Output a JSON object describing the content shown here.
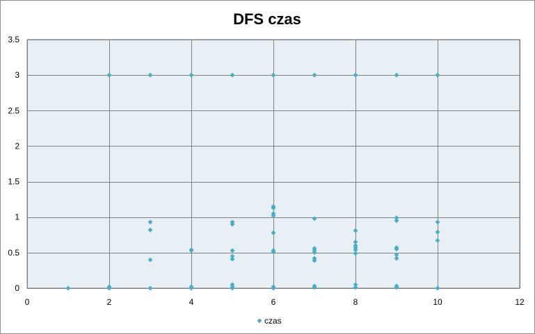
{
  "chart_data": {
    "type": "scatter",
    "title": "DFS czas",
    "xlabel": "",
    "ylabel": "",
    "xlim": [
      0,
      12
    ],
    "ylim": [
      0,
      3.5
    ],
    "x_ticks": [
      0,
      2,
      4,
      6,
      8,
      10,
      12
    ],
    "y_ticks": [
      0,
      0.5,
      1,
      1.5,
      2,
      2.5,
      3,
      3.5
    ],
    "x_tick_labels": [
      "0",
      "2",
      "4",
      "6",
      "8",
      "10",
      "12"
    ],
    "y_tick_labels": [
      "0",
      "0.5",
      "1",
      "1.5",
      "2",
      "2.5",
      "3",
      "3.5"
    ],
    "grid": true,
    "legend_position": "bottom",
    "plot_background": "#e9f0f5",
    "grid_color": "#808080",
    "marker_color": "#4bacc6",
    "series": [
      {
        "name": "czas",
        "marker": "diamond",
        "points": [
          [
            1,
            0.0
          ],
          [
            2,
            3.0
          ],
          [
            2,
            0.02
          ],
          [
            2,
            0.0
          ],
          [
            3,
            3.0
          ],
          [
            3,
            0.93
          ],
          [
            3,
            0.82
          ],
          [
            3,
            0.4
          ],
          [
            3,
            0.0
          ],
          [
            4,
            3.0
          ],
          [
            4,
            0.54
          ],
          [
            4,
            0.53
          ],
          [
            4,
            0.02
          ],
          [
            4,
            0.0
          ],
          [
            5,
            3.0
          ],
          [
            5,
            0.93
          ],
          [
            5,
            0.9
          ],
          [
            5,
            0.53
          ],
          [
            5,
            0.45
          ],
          [
            5,
            0.41
          ],
          [
            5,
            0.05
          ],
          [
            5,
            0.02
          ],
          [
            5,
            0.0
          ],
          [
            6,
            3.0
          ],
          [
            6,
            1.15
          ],
          [
            6,
            1.13
          ],
          [
            6,
            1.05
          ],
          [
            6,
            1.02
          ],
          [
            6,
            0.78
          ],
          [
            6,
            0.53
          ],
          [
            6,
            0.51
          ],
          [
            6,
            0.02
          ],
          [
            6,
            0.0
          ],
          [
            7,
            3.0
          ],
          [
            7,
            0.98
          ],
          [
            7,
            0.56
          ],
          [
            7,
            0.53
          ],
          [
            7,
            0.5
          ],
          [
            7,
            0.42
          ],
          [
            7,
            0.39
          ],
          [
            7,
            0.03
          ],
          [
            7,
            0.01
          ],
          [
            8,
            3.0
          ],
          [
            8,
            0.81
          ],
          [
            8,
            0.65
          ],
          [
            8,
            0.6
          ],
          [
            8,
            0.57
          ],
          [
            8,
            0.54
          ],
          [
            8,
            0.49
          ],
          [
            8,
            0.05
          ],
          [
            8,
            0.01
          ],
          [
            9,
            3.0
          ],
          [
            9,
            0.99
          ],
          [
            9,
            0.95
          ],
          [
            9,
            0.57
          ],
          [
            9,
            0.55
          ],
          [
            9,
            0.47
          ],
          [
            9,
            0.42
          ],
          [
            9,
            0.03
          ],
          [
            9,
            0.01
          ],
          [
            10,
            3.0
          ],
          [
            10,
            0.93
          ],
          [
            10,
            0.79
          ],
          [
            10,
            0.67
          ],
          [
            10,
            0.0
          ]
        ]
      }
    ]
  }
}
